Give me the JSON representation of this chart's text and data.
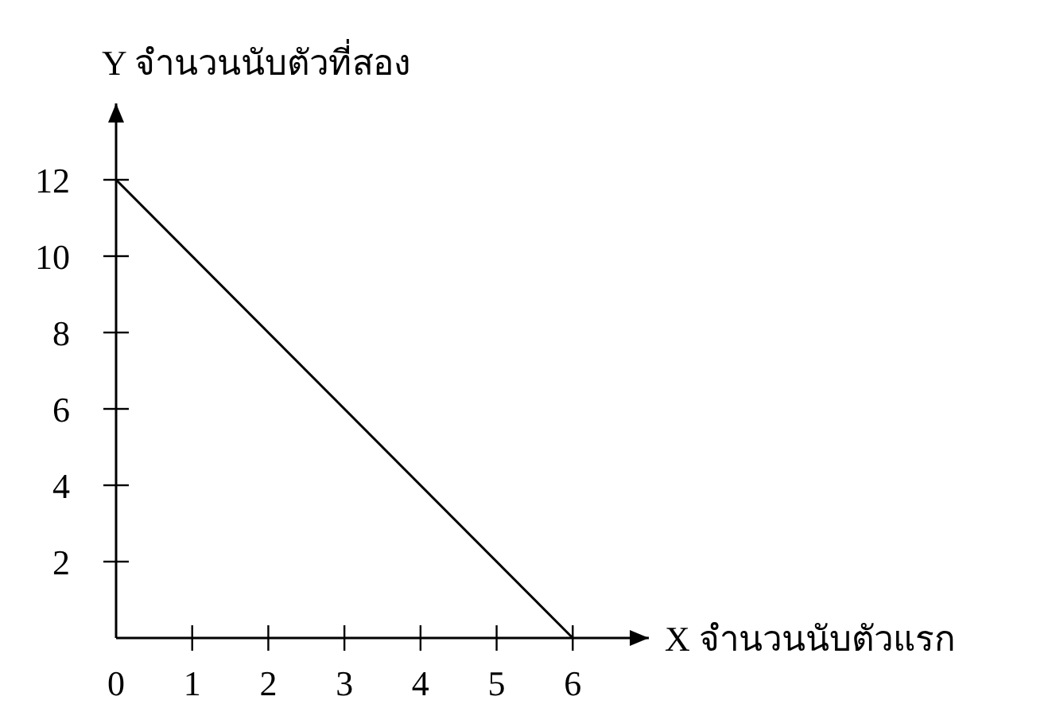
{
  "chart_data": {
    "type": "line",
    "xlabel": "X จำนวนนับตัวแรก",
    "ylabel": "Y จำนวนนับตัวที่สอง",
    "xlim": [
      0,
      7
    ],
    "ylim": [
      0,
      14
    ],
    "xticks": [
      0,
      1,
      2,
      3,
      4,
      5,
      6
    ],
    "yticks": [
      2,
      4,
      6,
      8,
      10,
      12
    ],
    "series": [
      {
        "color": "#000000",
        "x": [
          0,
          6
        ],
        "values": [
          12,
          0
        ]
      }
    ]
  }
}
